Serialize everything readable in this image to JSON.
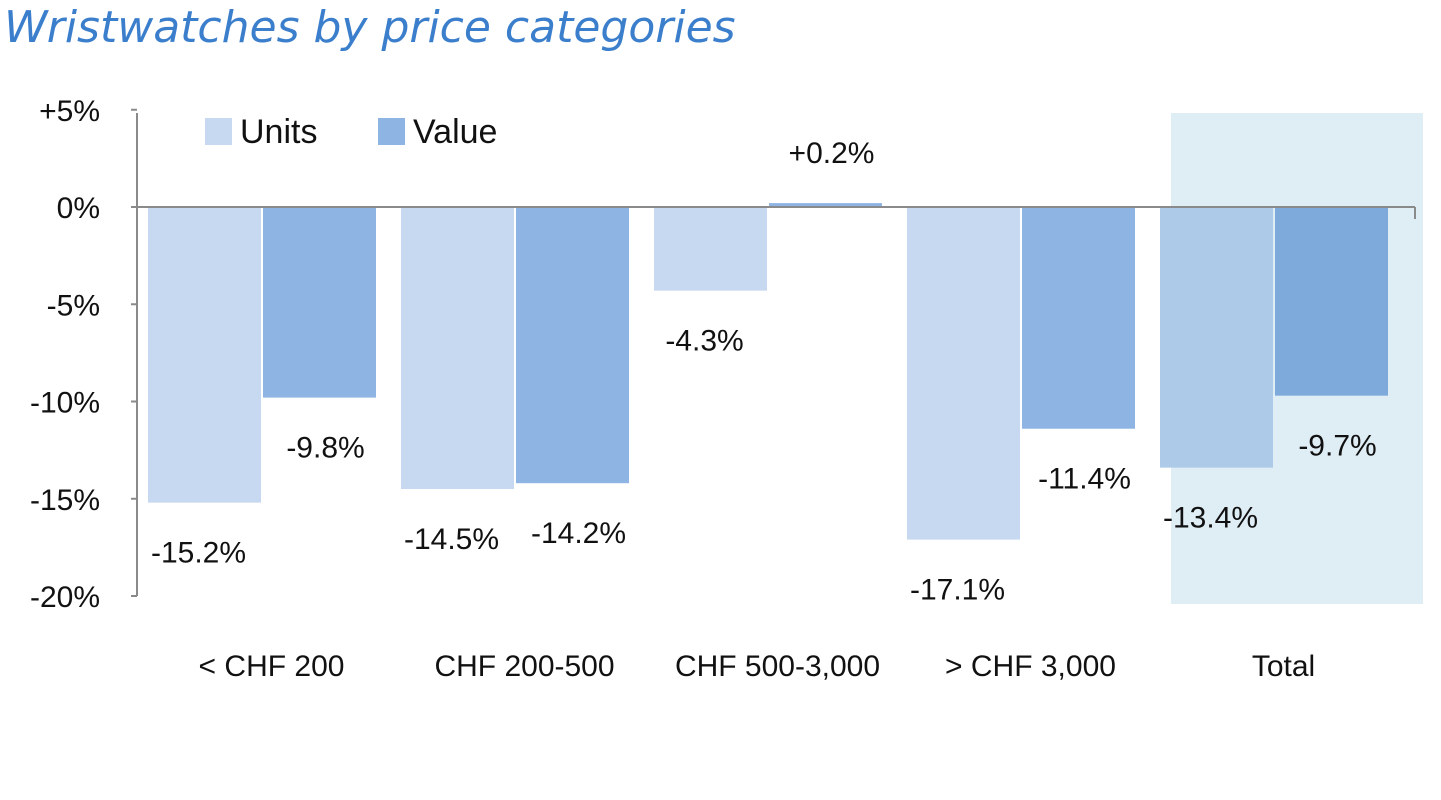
{
  "chart_data": {
    "type": "bar",
    "title": "Wristwatches by price categories",
    "categories": [
      "< CHF 200",
      "CHF 200-500",
      "CHF 500-3,000",
      "> CHF 3,000",
      "Total"
    ],
    "series": [
      {
        "name": "Units",
        "values": [
          -15.2,
          -14.5,
          -4.3,
          -17.1,
          -13.4
        ],
        "labels": [
          "-15.2%",
          "-14.5%",
          "-4.3%",
          "-17.1%",
          "-13.4%"
        ]
      },
      {
        "name": "Value",
        "values": [
          -9.8,
          -14.2,
          0.2,
          -11.4,
          -9.7
        ],
        "labels": [
          "-9.8%",
          "-14.2%",
          "+0.2%",
          "-11.4%",
          "-9.7%"
        ]
      }
    ],
    "ylim": [
      -20,
      5
    ],
    "yticks": [
      5,
      0,
      -5,
      -10,
      -15,
      -20
    ],
    "ytick_labels": [
      "+5%",
      "0%",
      "-5%",
      "-10%",
      "-15%",
      "-20%"
    ],
    "legend": "top-left",
    "highlighted_category": "Total",
    "colors": {
      "units": "#c6d9f0",
      "value": "#8eb4e3",
      "units_highlight": "#adcbe8",
      "value_highlight": "#7eaadb",
      "highlight_bg": "#dfedf5",
      "title": "#3b7fcc",
      "axis": "#8a8a8a"
    }
  }
}
